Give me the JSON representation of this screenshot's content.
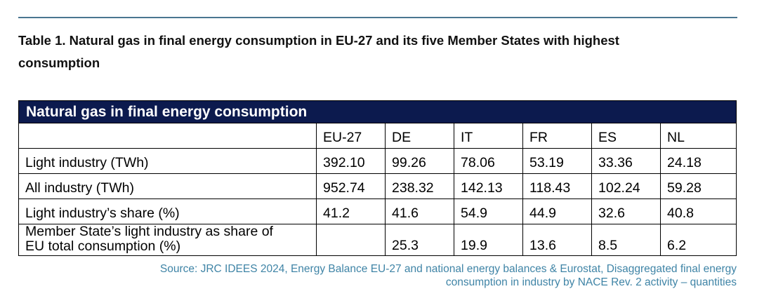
{
  "caption": {
    "line1": "Table 1. Natural gas in final energy consumption in EU-27 and its five Member States with highest",
    "line2": "consumption"
  },
  "table": {
    "title": "Natural gas in final energy consumption",
    "columns": [
      "EU-27",
      "DE",
      "IT",
      "FR",
      "ES",
      "NL"
    ],
    "rows": [
      {
        "label": "Light industry (TWh)",
        "values": [
          "392.10",
          "99.26",
          "78.06",
          "53.19",
          "33.36",
          "24.18"
        ]
      },
      {
        "label": "All industry (TWh)",
        "values": [
          "952.74",
          "238.32",
          "142.13",
          "118.43",
          "102.24",
          "59.28"
        ]
      },
      {
        "label": "Light industry’s share (%)",
        "values": [
          "41.2",
          "41.6",
          "54.9",
          "44.9",
          "32.6",
          "40.8"
        ]
      },
      {
        "label_line1": "Member State’s light industry as share of",
        "label_line2": "EU total consumption (%)",
        "values": [
          "",
          "25.3",
          "19.9",
          "13.6",
          "8.5",
          "6.2"
        ]
      }
    ]
  },
  "source": {
    "line1": "Source: JRC IDEES 2024, Energy Balance EU-27 and national energy balances & Eurostat, Disaggregated final energy",
    "line2": "consumption in industry by NACE Rev. 2 activity – quantities"
  },
  "colors": {
    "title_bar": "#0c1a4e",
    "rule": "#4a7690",
    "source_text": "#3f84a6"
  }
}
